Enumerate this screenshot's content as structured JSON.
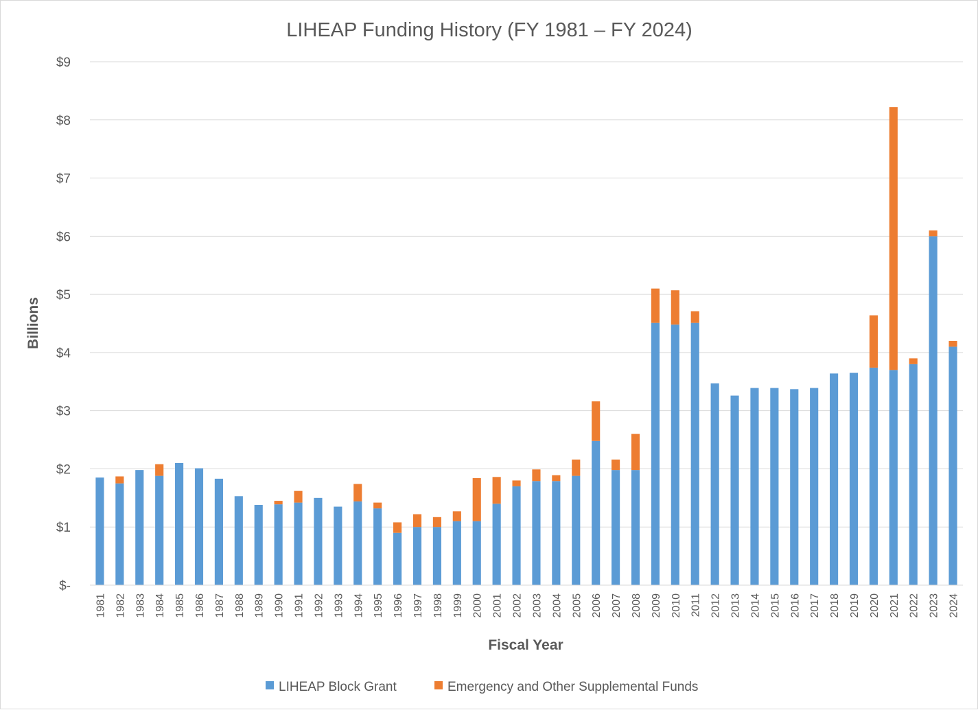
{
  "chart_data": {
    "type": "bar",
    "stacked": true,
    "title": "LIHEAP Funding History (FY 1981 – FY 2024)",
    "xlabel": "Fiscal Year",
    "ylabel": "Billions",
    "ylim": [
      0,
      9
    ],
    "yticks": [
      {
        "value": 0,
        "label": "$-"
      },
      {
        "value": 1,
        "label": "$1"
      },
      {
        "value": 2,
        "label": "$2"
      },
      {
        "value": 3,
        "label": "$3"
      },
      {
        "value": 4,
        "label": "$4"
      },
      {
        "value": 5,
        "label": "$5"
      },
      {
        "value": 6,
        "label": "$6"
      },
      {
        "value": 7,
        "label": "$7"
      },
      {
        "value": 8,
        "label": "$8"
      },
      {
        "value": 9,
        "label": "$9"
      }
    ],
    "grid": true,
    "legend_position": "bottom",
    "categories": [
      "1981",
      "1982",
      "1983",
      "1984",
      "1985",
      "1986",
      "1987",
      "1988",
      "1989",
      "1990",
      "1991",
      "1992",
      "1993",
      "1994",
      "1995",
      "1996",
      "1997",
      "1998",
      "1999",
      "2000",
      "2001",
      "2002",
      "2003",
      "2004",
      "2005",
      "2006",
      "2007",
      "2008",
      "2009",
      "2010",
      "2011",
      "2012",
      "2013",
      "2014",
      "2015",
      "2016",
      "2017",
      "2018",
      "2019",
      "2020",
      "2021",
      "2022",
      "2023",
      "2024"
    ],
    "series": [
      {
        "name": "LIHEAP Block Grant",
        "color": "#5b9bd5",
        "values": [
          1.85,
          1.75,
          1.98,
          1.88,
          2.1,
          2.01,
          1.83,
          1.53,
          1.38,
          1.39,
          1.42,
          1.5,
          1.35,
          1.44,
          1.32,
          0.9,
          1.0,
          1.0,
          1.1,
          1.1,
          1.4,
          1.7,
          1.79,
          1.79,
          1.88,
          2.48,
          1.98,
          1.98,
          4.51,
          4.48,
          4.51,
          3.47,
          3.26,
          3.39,
          3.39,
          3.37,
          3.39,
          3.64,
          3.65,
          3.74,
          3.7,
          3.8,
          6.0,
          4.1
        ]
      },
      {
        "name": "Emergency and Other Supplemental Funds",
        "color": "#ed7d31",
        "values": [
          0,
          0.12,
          0,
          0.2,
          0,
          0,
          0,
          0,
          0,
          0.06,
          0.2,
          0,
          0,
          0.3,
          0.1,
          0.18,
          0.22,
          0.17,
          0.17,
          0.74,
          0.46,
          0.1,
          0.2,
          0.1,
          0.28,
          0.68,
          0.18,
          0.62,
          0.59,
          0.59,
          0.2,
          0,
          0,
          0,
          0,
          0,
          0,
          0,
          0,
          0.9,
          4.52,
          0.1,
          0.1,
          0.1
        ]
      }
    ]
  }
}
